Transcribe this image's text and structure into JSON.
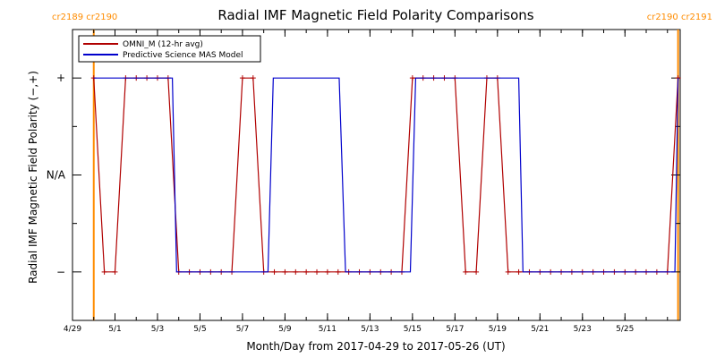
{
  "chart_data": {
    "type": "line",
    "title": "Radial IMF Magnetic Field Polarity Comparisons",
    "xlabel": "Month/Day from 2017-04-29 to 2017-05-26 (UT)",
    "ylabel": "Radial IMF Magnetic Field Polarity (−,+)",
    "x_start": "2017-04-29",
    "x_end": "2017-05-26",
    "x_unit": "days",
    "xlim": [
      0,
      28.6
    ],
    "ylim": [
      -1.5,
      1.5
    ],
    "y_ticks": [
      {
        "value": 1,
        "label": "+"
      },
      {
        "value": 0,
        "label": "N/A"
      },
      {
        "value": -1,
        "label": "−"
      }
    ],
    "x_ticks": [
      {
        "value": 0,
        "label": "4/29"
      },
      {
        "value": 2,
        "label": "5/1"
      },
      {
        "value": 4,
        "label": "5/3"
      },
      {
        "value": 6,
        "label": "5/5"
      },
      {
        "value": 8,
        "label": "5/7"
      },
      {
        "value": 10,
        "label": "5/9"
      },
      {
        "value": 12,
        "label": "5/11"
      },
      {
        "value": 14,
        "label": "5/13"
      },
      {
        "value": 16,
        "label": "5/15"
      },
      {
        "value": 18,
        "label": "5/17"
      },
      {
        "value": 20,
        "label": "5/19"
      },
      {
        "value": 22,
        "label": "5/21"
      },
      {
        "value": 24,
        "label": "5/23"
      },
      {
        "value": 26,
        "label": "5/25"
      }
    ],
    "carrington_markers": [
      {
        "x": 1.0,
        "label": "cr2189 cr2190",
        "color": "#ff8c00",
        "label_position": "top-left"
      },
      {
        "x": 28.5,
        "label": "cr2190 cr2191",
        "color": "#ff8c00",
        "label_position": "top-right"
      }
    ],
    "legend_position": "top-left",
    "series": [
      {
        "name": "OMNI_M (12-hr avg)",
        "color": "#b00000",
        "markers": true,
        "x": [
          1.0,
          1.5,
          2.0,
          2.5,
          3.0,
          3.5,
          4.0,
          4.5,
          5.0,
          5.5,
          6.0,
          6.5,
          7.0,
          7.5,
          8.0,
          8.5,
          9.0,
          9.5,
          10.0,
          10.5,
          11.0,
          11.5,
          12.0,
          12.5,
          13.0,
          13.5,
          14.0,
          14.5,
          15.0,
          15.5,
          16.0,
          16.5,
          17.0,
          17.5,
          18.0,
          18.5,
          19.0,
          19.5,
          20.0,
          20.5,
          21.0,
          21.5,
          22.0,
          22.5,
          23.0,
          23.5,
          24.0,
          24.5,
          25.0,
          25.5,
          26.0,
          26.5,
          27.0,
          27.5,
          28.0,
          28.5
        ],
        "y": [
          1,
          -1,
          -1,
          1,
          1,
          1,
          1,
          1,
          -1,
          -1,
          -1,
          -1,
          -1,
          -1,
          1,
          1,
          -1,
          -1,
          -1,
          -1,
          -1,
          -1,
          -1,
          -1,
          -1,
          -1,
          -1,
          -1,
          -1,
          -1,
          1,
          1,
          1,
          1,
          1,
          -1,
          -1,
          1,
          1,
          -1,
          -1,
          -1,
          -1,
          -1,
          -1,
          -1,
          -1,
          -1,
          -1,
          -1,
          -1,
          -1,
          -1,
          -1,
          -1,
          1
        ]
      },
      {
        "name": "Predictive Science MAS Model",
        "color": "#0000cc",
        "markers": false,
        "x": [
          1.0,
          4.7,
          4.9,
          9.2,
          9.45,
          12.55,
          12.85,
          15.9,
          16.15,
          21.0,
          21.2,
          28.35,
          28.5
        ],
        "y": [
          1,
          1,
          -1,
          -1,
          1,
          1,
          -1,
          -1,
          1,
          1,
          -1,
          -1,
          1
        ]
      }
    ]
  }
}
